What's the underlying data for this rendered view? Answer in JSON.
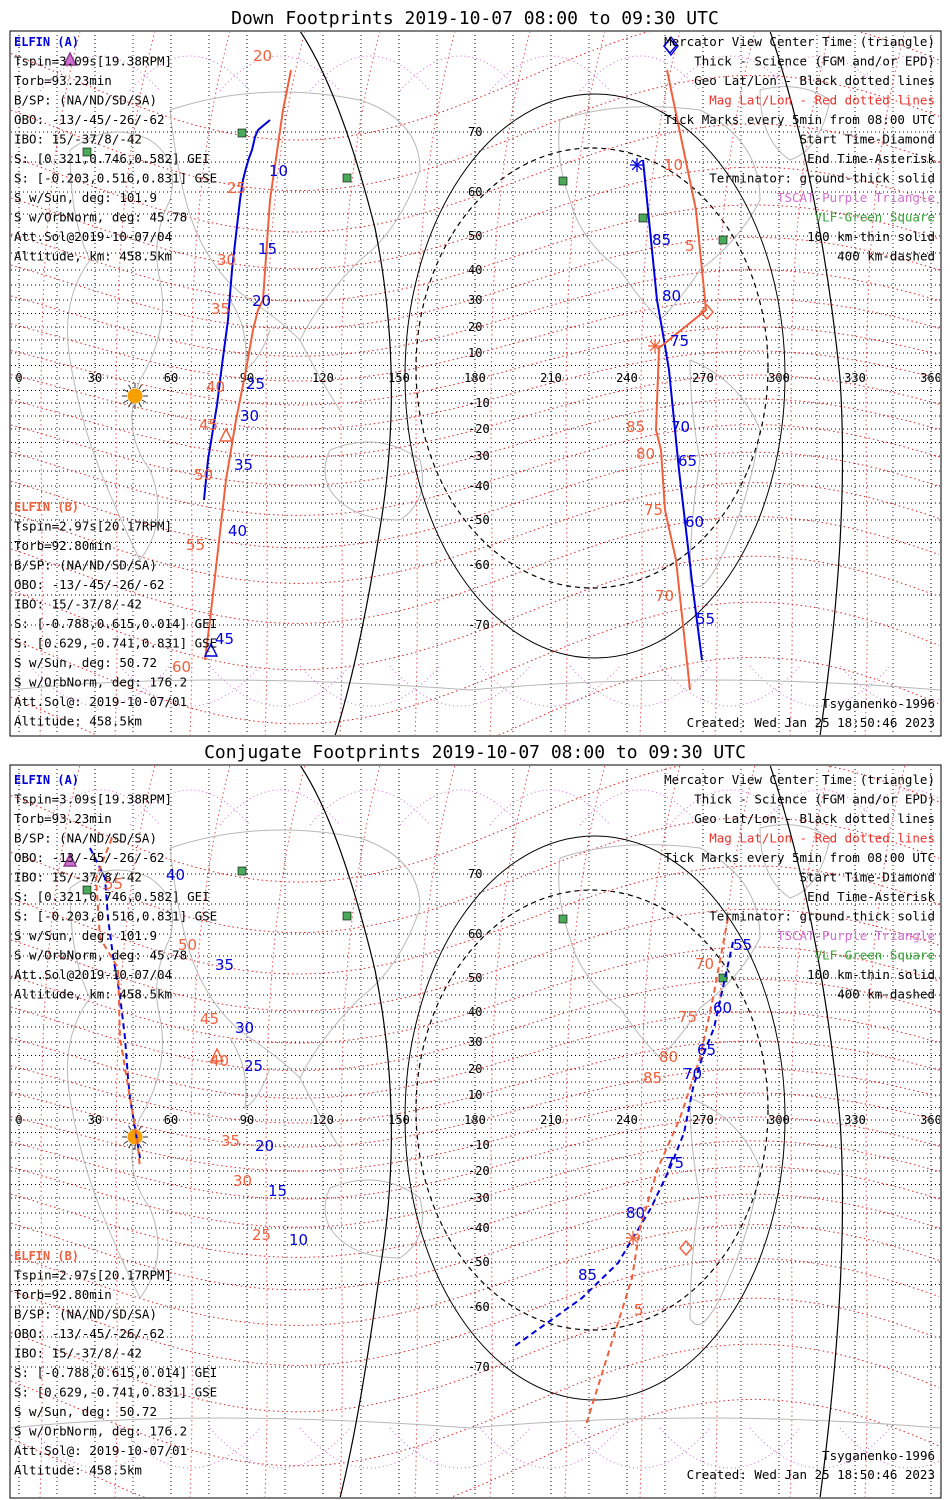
{
  "panels": [
    {
      "key": "down",
      "title": "Down Footprints 2019-10-07 08:00 to 09:30 UTC",
      "line_style": "solid",
      "elfin_a": {
        "header": "ELFIN (A)",
        "lines": [
          "Tspin=3.09s[19.38RPM]",
          "Torb=93.23min",
          "B/SP: (NA/ND/SD/SA)",
          "OBO: -13/-45/-26/-62",
          "IBO: 15/-37/8/-42",
          "S: [0.321,0.746,0.582] GEI",
          "S: [-0.203,0.516,0.831] GSE",
          "S w/Sun, deg: 101.9",
          "S w/OrbNorm, deg: 45.78",
          "Att.Sol@2019-10-07/04",
          "Altitude, km: 458.5km"
        ]
      },
      "elfin_b": {
        "header": "ELFIN (B)",
        "lines": [
          "Tspin=2.97s[20.17RPM]",
          "Torb=92.80min",
          "B/SP: (NA/ND/SD/SA)",
          "OBO: -13/-45/-26/-62",
          "IBO: 15/-37/8/-42",
          "S: [-0.788,0.615,0.014] GEI",
          "S: [0.629,-0.741,0.831] GSE",
          "S w/Sun, deg: 50.72",
          "S w/OrbNorm, deg: 176.2",
          "Att.Sol@: 2019-10-07/01",
          "Altitude: 458.5km"
        ]
      },
      "model": "Tsyganenko-1996",
      "created": "Created: Wed Jan 25 18:50:46 2023"
    },
    {
      "key": "conj",
      "title": "Conjugate Footprints 2019-10-07 08:00 to 09:30 UTC",
      "line_style": "dashed",
      "elfin_a": {
        "header": "ELFIN (A)",
        "lines": [
          "Tspin=3.09s[19.38RPM]",
          "Torb=93.23min",
          "B/SP: (NA/ND/SD/SA)",
          "OBO: -13/-45/-26/-62",
          "IBO: 15/-37/8/-42",
          "S: [0.321,0.746,0.582] GEI",
          "S: [-0.203,0.516,0.831] GSE",
          "S w/Sun, deg: 101.9",
          "S w/OrbNorm, deg: 45.78",
          "Att.Sol@2019-10-07/04",
          "Altitude, km: 458.5km"
        ]
      },
      "elfin_b": {
        "header": "ELFIN (B)",
        "lines": [
          "Tspin=2.97s[20.17RPM]",
          "Torb=92.80min",
          "B/SP: (NA/ND/SD/SA)",
          "OBO: -13/-45/-26/-62",
          "IBO: 15/-37/8/-42",
          "S: [-0.788,0.615,0.014] GEI",
          "S: [0.629,-0.741,0.831] GSE",
          "S w/Sun, deg: 50.72",
          "S w/OrbNorm, deg: 176.2",
          "Att.Sol@: 2019-10-07/01",
          "Altitude: 458.5km"
        ]
      },
      "model": "Tsyganenko-1996",
      "created": "Created: Wed Jan 25 18:50:46 2023"
    }
  ],
  "legend": [
    {
      "text": "Mercator View Center Time (triangle)",
      "color": "#000000"
    },
    {
      "text": "Thick - Science (FGM and/or EPD)",
      "color": "#000000"
    },
    {
      "text": "Geo Lat/Lon - Black dotted lines",
      "color": "#000000"
    },
    {
      "text": "Mag Lat/Lon - Red dotted lines",
      "color": "#e8322a"
    },
    {
      "text": "Tick Marks every 5min from 08:00 UTC",
      "color": "#000000"
    },
    {
      "text": "Start Time-Diamond",
      "color": "#000000"
    },
    {
      "text": "End Time-Asterisk",
      "color": "#000000"
    },
    {
      "text": "Terminator: ground-thick solid",
      "color": "#000000"
    },
    {
      "text": "TSCAT-Purple Triangle",
      "color": "#d070d0"
    },
    {
      "text": "VLF-Green Square",
      "color": "#3aa03a"
    },
    {
      "text": "100 km-thin solid",
      "color": "#000000"
    },
    {
      "text": "400 km-dashed",
      "color": "#000000"
    }
  ],
  "map": {
    "lon_labels": [
      "0",
      "30",
      "60",
      "90",
      "120",
      "150",
      "180",
      "210",
      "240",
      "270",
      "300",
      "330",
      "360"
    ],
    "lon_values": [
      0,
      30,
      60,
      90,
      120,
      150,
      180,
      210,
      240,
      270,
      300,
      330,
      360
    ],
    "lat_labels": [
      "70",
      "60",
      "50",
      "40",
      "30",
      "20",
      "10",
      "-10",
      "-20",
      "-30",
      "-40",
      "-50",
      "-60",
      "-70"
    ],
    "lat_values": [
      70,
      60,
      50,
      40,
      30,
      20,
      10,
      -10,
      -20,
      -30,
      -40,
      -50,
      -60,
      -70
    ]
  },
  "colors": {
    "elfin_a": "#0000dd",
    "elfin_b": "#f0603c",
    "mag_grid": "#dd2222",
    "geo_grid": "#000000",
    "coast": "#b8b8b8",
    "tscat": "#d070d0",
    "vlf": "#3aa03a",
    "sun": "#f5a000"
  },
  "footprints": {
    "down": {
      "a_track": [
        [
          270,
          -120
        ],
        [
          258,
          -130
        ],
        [
          255,
          -137
        ],
        [
          252,
          -150
        ],
        [
          249,
          -158
        ],
        [
          246,
          -168
        ],
        [
          243,
          -180
        ],
        [
          240,
          -200
        ],
        [
          232,
          -270
        ],
        [
          228,
          -320
        ],
        [
          222,
          -365
        ],
        [
          217,
          -405
        ],
        [
          208,
          -460
        ],
        [
          204,
          -500
        ]
      ],
      "a_ticks": [
        [
          269,
          176,
          "10"
        ],
        [
          258,
          254,
          "15"
        ],
        [
          252,
          306,
          "20"
        ],
        [
          246,
          389,
          "25"
        ],
        [
          240,
          421,
          "30"
        ],
        [
          234,
          470,
          "35"
        ],
        [
          228,
          536,
          "40"
        ],
        [
          215,
          644,
          "45"
        ]
      ],
      "b_track": [
        [
          291,
          -70
        ],
        [
          283,
          -110
        ],
        [
          270,
          -200
        ],
        [
          263,
          -300
        ],
        [
          258,
          -310
        ],
        [
          253,
          -330
        ],
        [
          246,
          -370
        ],
        [
          236,
          -420
        ],
        [
          226,
          -480
        ],
        [
          218,
          -550
        ],
        [
          210,
          -620
        ],
        [
          205,
          -660
        ]
      ],
      "b_ticks": [
        [
          253,
          61,
          "20"
        ],
        [
          227,
          193,
          "25"
        ],
        [
          217,
          265,
          "30"
        ],
        [
          211,
          314,
          "35"
        ],
        [
          206,
          392,
          "40"
        ],
        [
          199,
          430,
          "45"
        ],
        [
          194,
          480,
          "50"
        ],
        [
          186,
          550,
          "55"
        ],
        [
          172,
          672,
          "60"
        ]
      ],
      "a_right": [
        [
          643,
          -160
        ],
        [
          650,
          -230
        ],
        [
          657,
          -300
        ],
        [
          664,
          -340
        ],
        [
          669,
          -370
        ],
        [
          673,
          -410
        ],
        [
          679,
          -470
        ],
        [
          686,
          -530
        ],
        [
          693,
          -590
        ],
        [
          702,
          -660
        ]
      ],
      "a_right_ticks": [
        [
          652,
          245,
          "85"
        ],
        [
          662,
          301,
          "80"
        ],
        [
          670,
          346,
          "75"
        ],
        [
          671,
          432,
          "70"
        ],
        [
          678,
          466,
          "65"
        ],
        [
          685,
          527,
          "60"
        ],
        [
          696,
          624,
          "55"
        ]
      ],
      "b_right": [
        [
          667,
          -70
        ],
        [
          696,
          -210
        ],
        [
          706,
          -310
        ],
        [
          659,
          -348
        ],
        [
          656,
          -430
        ],
        [
          661,
          -450
        ],
        [
          665,
          -510
        ],
        [
          676,
          -560
        ],
        [
          690,
          -690
        ]
      ],
      "b_right_ticks": [
        [
          664,
          170,
          "10"
        ],
        [
          685,
          251,
          "5"
        ],
        [
          626,
          432,
          "85"
        ],
        [
          636,
          459,
          "80"
        ],
        [
          644,
          515,
          "75"
        ],
        [
          655,
          601,
          "70"
        ]
      ],
      "start_a": [
        670,
        -46
      ],
      "start_b": [
        707,
        -312
      ],
      "end_a": [
        637,
        -165
      ],
      "end_b": [
        655,
        -346
      ],
      "tscat_a": [
        70,
        -60
      ],
      "tscat_b": [
        226,
        -436
      ],
      "center_a": [
        211,
        -651
      ]
    },
    "conj": {
      "a_track": [
        [
          90,
          -110
        ],
        [
          105,
          -140
        ],
        [
          108,
          -180
        ],
        [
          113,
          -218
        ],
        [
          120,
          -258
        ],
        [
          125,
          -300
        ],
        [
          128,
          -340
        ],
        [
          130,
          -360
        ],
        [
          135,
          -390
        ],
        [
          140,
          -420
        ]
      ],
      "a_ticks": [
        [
          166,
          142,
          "40"
        ],
        [
          215,
          232,
          "35"
        ],
        [
          235,
          295,
          "30"
        ],
        [
          244,
          333,
          "25"
        ],
        [
          255,
          413,
          "20"
        ],
        [
          268,
          458,
          "15"
        ],
        [
          289,
          507,
          "10"
        ]
      ],
      "b_track": [
        [
          112,
          -100
        ],
        [
          96,
          -140
        ],
        [
          100,
          -200
        ],
        [
          118,
          -230
        ],
        [
          120,
          -300
        ],
        [
          130,
          -360
        ],
        [
          137,
          -400
        ],
        [
          140,
          -430
        ]
      ],
      "b_ticks": [
        [
          104,
          151,
          "55"
        ],
        [
          178,
          212,
          "50"
        ],
        [
          200,
          286,
          "45"
        ],
        [
          210,
          328,
          "40"
        ],
        [
          221,
          408,
          "35"
        ],
        [
          233,
          448,
          "30"
        ],
        [
          252,
          502,
          "25"
        ]
      ],
      "a_right": [
        [
          733,
          -204
        ],
        [
          714,
          -290
        ],
        [
          702,
          -320
        ],
        [
          693,
          -350
        ],
        [
          684,
          -395
        ],
        [
          670,
          -430
        ],
        [
          651,
          -470
        ],
        [
          618,
          -525
        ],
        [
          582,
          -560
        ],
        [
          512,
          -610
        ]
      ],
      "a_right_ticks": [
        [
          733,
          212,
          "55"
        ],
        [
          713,
          275,
          "60"
        ],
        [
          697,
          317,
          "65"
        ],
        [
          683,
          341,
          "70"
        ],
        [
          665,
          430,
          "75"
        ],
        [
          626,
          480,
          "80"
        ],
        [
          578,
          542,
          "85"
        ]
      ],
      "b_right": [
        [
          728,
          -180
        ],
        [
          713,
          -260
        ],
        [
          700,
          -320
        ],
        [
          680,
          -380
        ],
        [
          658,
          -430
        ],
        [
          640,
          -490
        ],
        [
          632,
          -540
        ],
        [
          610,
          -610
        ],
        [
          585,
          -690
        ]
      ],
      "b_right_ticks": [
        [
          695,
          231,
          "70"
        ],
        [
          678,
          284,
          "75"
        ],
        [
          659,
          324,
          "80"
        ],
        [
          643,
          345,
          "85"
        ],
        [
          634,
          577,
          "5"
        ]
      ],
      "start_b": [
        686,
        -510
      ],
      "end_b": [
        633,
        -500
      ],
      "tscat_a": [
        70,
        -123
      ],
      "tscat_b": [
        217,
        -318
      ]
    }
  }
}
